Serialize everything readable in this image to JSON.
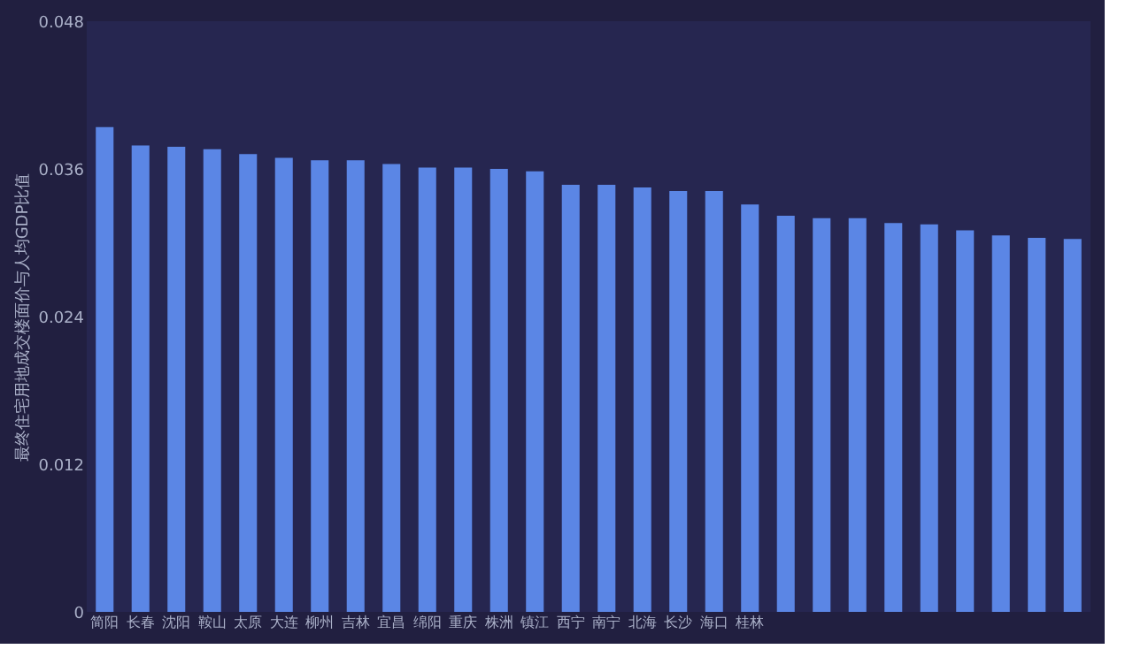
{
  "chart_data": {
    "type": "bar",
    "ylabel": "最终住宅用地成交楼面价与人均GDP比值",
    "categories": [
      "简阳",
      "长春",
      "沈阳",
      "鞍山",
      "太原",
      "大连",
      "柳州",
      "吉林",
      "宜昌",
      "绵阳",
      "重庆",
      "株洲",
      "镇江",
      "西宁",
      "南宁",
      "北海",
      "长沙",
      "海口",
      "桂林",
      null,
      null,
      null,
      null,
      null,
      null,
      null,
      null,
      null
    ],
    "values": [
      0.0394,
      0.0379,
      0.0378,
      0.0376,
      0.0372,
      0.0369,
      0.0367,
      0.0367,
      0.0364,
      0.0361,
      0.0361,
      0.036,
      0.0358,
      0.0347,
      0.0347,
      0.0345,
      0.0342,
      0.0342,
      0.0331,
      0.0322,
      0.032,
      0.032,
      0.0316,
      0.0315,
      0.031,
      0.0306,
      0.0304,
      0.0303
    ],
    "color": "#5b86e5",
    "ylim": [
      0,
      0.048
    ],
    "yticks": [
      0,
      0.012,
      0.024,
      0.036,
      0.048
    ],
    "grid": false
  }
}
